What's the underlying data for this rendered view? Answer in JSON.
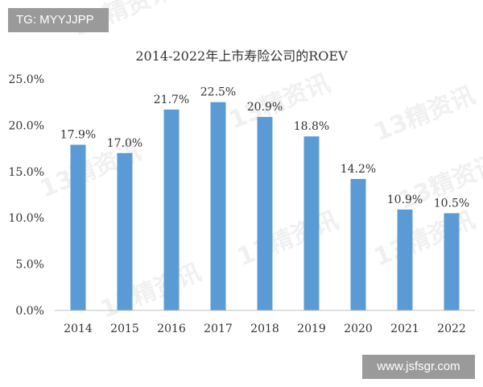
{
  "overlays": {
    "top_tag": "TG: MYYJJPP",
    "bottom_tag": "www.jsfsgr.com"
  },
  "watermark": "13精资讯",
  "chart_data": {
    "type": "bar",
    "title": "2014-2022年上市寿险公司的ROEV",
    "categories": [
      "2014",
      "2015",
      "2016",
      "2017",
      "2018",
      "2019",
      "2020",
      "2021",
      "2022"
    ],
    "values": [
      17.9,
      17.0,
      21.7,
      22.5,
      20.9,
      18.8,
      14.2,
      10.9,
      10.5
    ],
    "data_labels": [
      "17.9%",
      "17.0%",
      "21.7%",
      "22.5%",
      "20.9%",
      "18.8%",
      "14.2%",
      "10.9%",
      "10.5%"
    ],
    "yticks": [
      0,
      5,
      10,
      15,
      20,
      25
    ],
    "ytick_labels": [
      "0.0%",
      "5.0%",
      "10.0%",
      "15.0%",
      "20.0%",
      "25.0%"
    ],
    "ylim": [
      0,
      25
    ],
    "xlabel": "",
    "ylabel": "",
    "grid": false,
    "legend": "none",
    "bar_color": "#5b9bd5",
    "axis_color": "#bfbfbf",
    "text_color": "#333333"
  }
}
